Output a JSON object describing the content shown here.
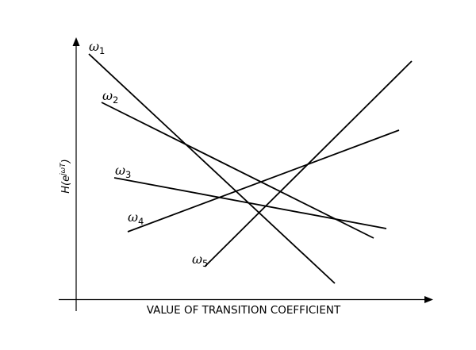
{
  "axes": {
    "x_label": "VALUE OF TRANSITION COEFFICIENT",
    "y_label_base": "H(e",
    "y_label_sup": "jωT",
    "y_label_end": ")"
  },
  "lines": [
    {
      "id": "omega-1",
      "symbol": "ω",
      "sub": "1"
    },
    {
      "id": "omega-2",
      "symbol": "ω",
      "sub": "2"
    },
    {
      "id": "omega-3",
      "symbol": "ω",
      "sub": "3"
    },
    {
      "id": "omega-4",
      "symbol": "ω",
      "sub": "4"
    },
    {
      "id": "omega-5",
      "symbol": "ω",
      "sub": "5"
    }
  ]
}
